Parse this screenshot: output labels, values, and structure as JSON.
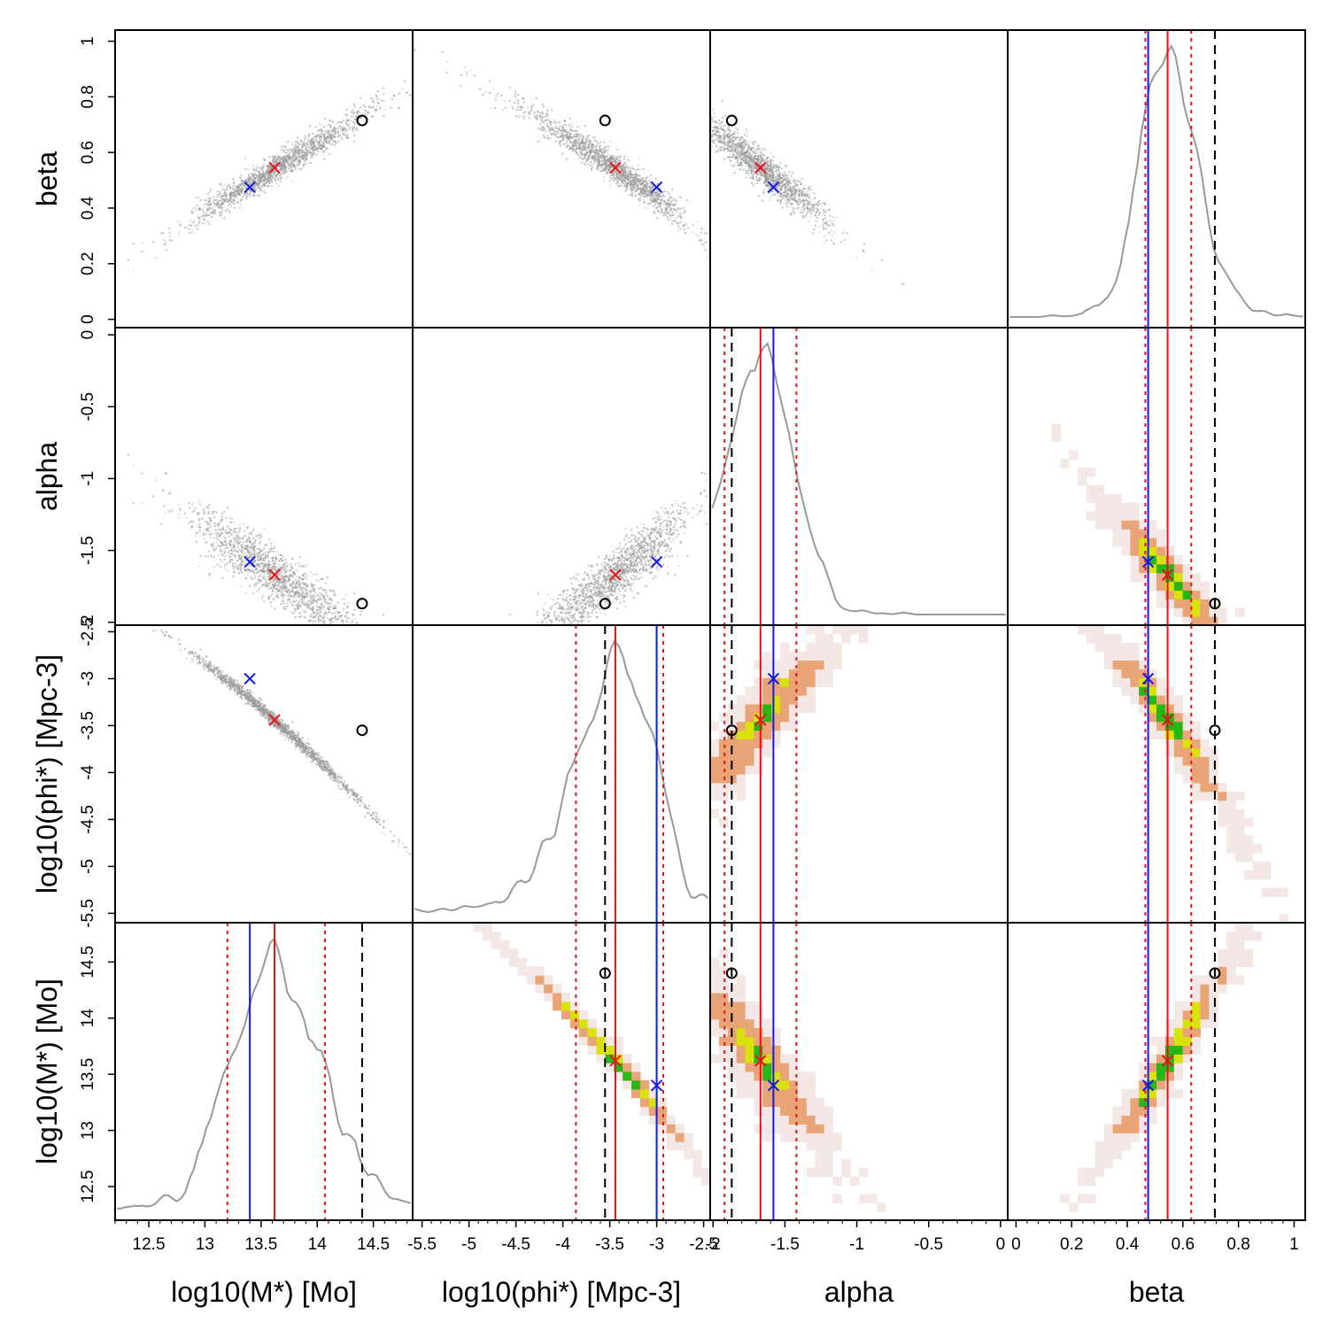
{
  "chart_data": {
    "type": "scatter",
    "title": "",
    "parameters": [
      {
        "key": "logM",
        "label": "log10(M*) [Mo]",
        "range": [
          12.2,
          14.85
        ],
        "ticks": [
          "12.5",
          "13",
          "13.5",
          "14",
          "14.5"
        ],
        "best": 13.62,
        "sd_low": 13.2,
        "sd_high": 14.07,
        "true": 14.4,
        "blue": 13.4
      },
      {
        "key": "logphi",
        "label": "log10(phi*) [Mpc^-3]",
        "range": [
          -5.6,
          -2.43
        ],
        "ticks": [
          "-5.5",
          "-5",
          "-4.5",
          "-4",
          "-3.5",
          "-3",
          "-2.5"
        ],
        "best": -3.44,
        "sd_low": -3.86,
        "sd_high": -2.93,
        "true": -3.55,
        "blue": -3.0
      },
      {
        "key": "alpha",
        "label": "alpha",
        "range": [
          -2.02,
          0.05
        ],
        "ticks": [
          "-2",
          "-1.5",
          "-1",
          "-0.5",
          "0"
        ],
        "best": -1.67,
        "sd_low": -1.92,
        "sd_high": -1.42,
        "true": -1.87,
        "blue": -1.58
      },
      {
        "key": "beta",
        "label": "beta",
        "range": [
          -0.03,
          1.04
        ],
        "ticks": [
          "0",
          "0.2",
          "0.4",
          "0.6",
          "0.8",
          "1"
        ],
        "best": 0.545,
        "sd_low": 0.465,
        "sd_high": 0.63,
        "true": 0.715,
        "blue": 0.475
      }
    ],
    "row_order": [
      "beta",
      "alpha",
      "logphi",
      "logM"
    ],
    "col_order": [
      "logM",
      "logphi",
      "alpha",
      "beta"
    ],
    "x_axis_titles": [
      "log10(M*) [Mo]",
      "log10(phi*) [Mpc-3]",
      "alpha",
      "beta"
    ],
    "y_axis_titles": [
      "beta",
      "alpha",
      "log10(phi*) [Mpc-3]",
      "log10(M*) [Mo]"
    ],
    "markers": {
      "true_value": "black circle / dashed line",
      "best_fit": "red cross / solid line",
      "alt_fit": "blue cross / solid line",
      "interval": "red dotted lines"
    },
    "colors": {
      "samples": "#9a9a9a",
      "density": "#999999",
      "best": "#e8111a",
      "alt": "#1219e0",
      "true": "#000000",
      "heat_low": "#f2e4e2",
      "heat_mid": "#e8a070",
      "heat_high": "#1db30b",
      "heat_peak": "#d8e000"
    }
  }
}
